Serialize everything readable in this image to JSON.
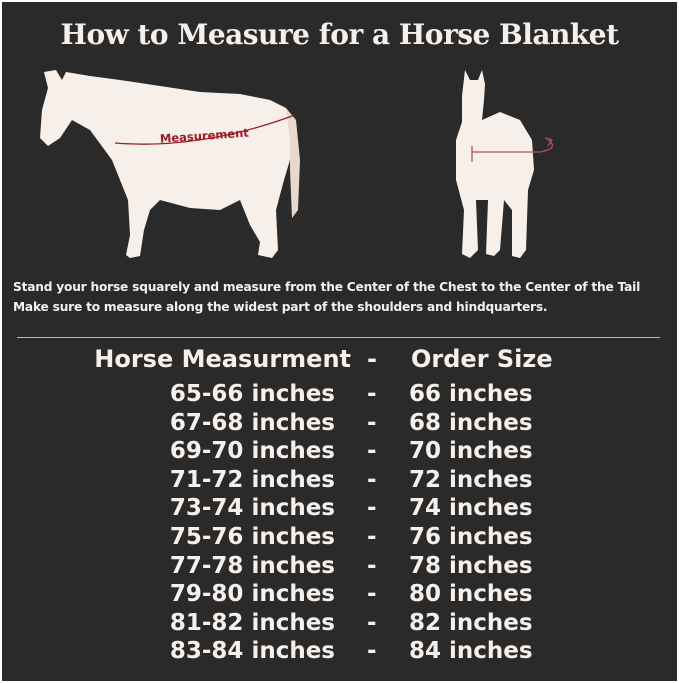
{
  "title": "How to Measure for a Horse Blanket",
  "diagram": {
    "measurement_label": "Measurement",
    "accent_color": "#9b1c24",
    "horse_color": "#f7f0ea",
    "background": "#2b2a2a"
  },
  "instructions": [
    "Stand your horse squarely and measure from the Center of the Chest to the Center of the Tail",
    "Make sure to measure along the widest part of the shoulders and hindquarters."
  ],
  "table": {
    "headers": {
      "measurement": "Horse Measurment",
      "separator": "-",
      "size": "Order Size"
    },
    "rows": [
      {
        "measurement": "65-66 inches",
        "separator": "-",
        "size": "66 inches"
      },
      {
        "measurement": "67-68 inches",
        "separator": "-",
        "size": "68 inches"
      },
      {
        "measurement": "69-70 inches",
        "separator": "-",
        "size": "70 inches"
      },
      {
        "measurement": "71-72 inches",
        "separator": "-",
        "size": "72 inches"
      },
      {
        "measurement": "73-74 inches",
        "separator": "-",
        "size": "74 inches"
      },
      {
        "measurement": "75-76 inches",
        "separator": "-",
        "size": "76 inches"
      },
      {
        "measurement": "77-78 inches",
        "separator": "-",
        "size": "78 inches"
      },
      {
        "measurement": "79-80 inches",
        "separator": "-",
        "size": "80 inches"
      },
      {
        "measurement": "81-82 inches",
        "separator": "-",
        "size": "82 inches"
      },
      {
        "measurement": "83-84 inches",
        "separator": "-",
        "size": "84 inches"
      }
    ]
  }
}
